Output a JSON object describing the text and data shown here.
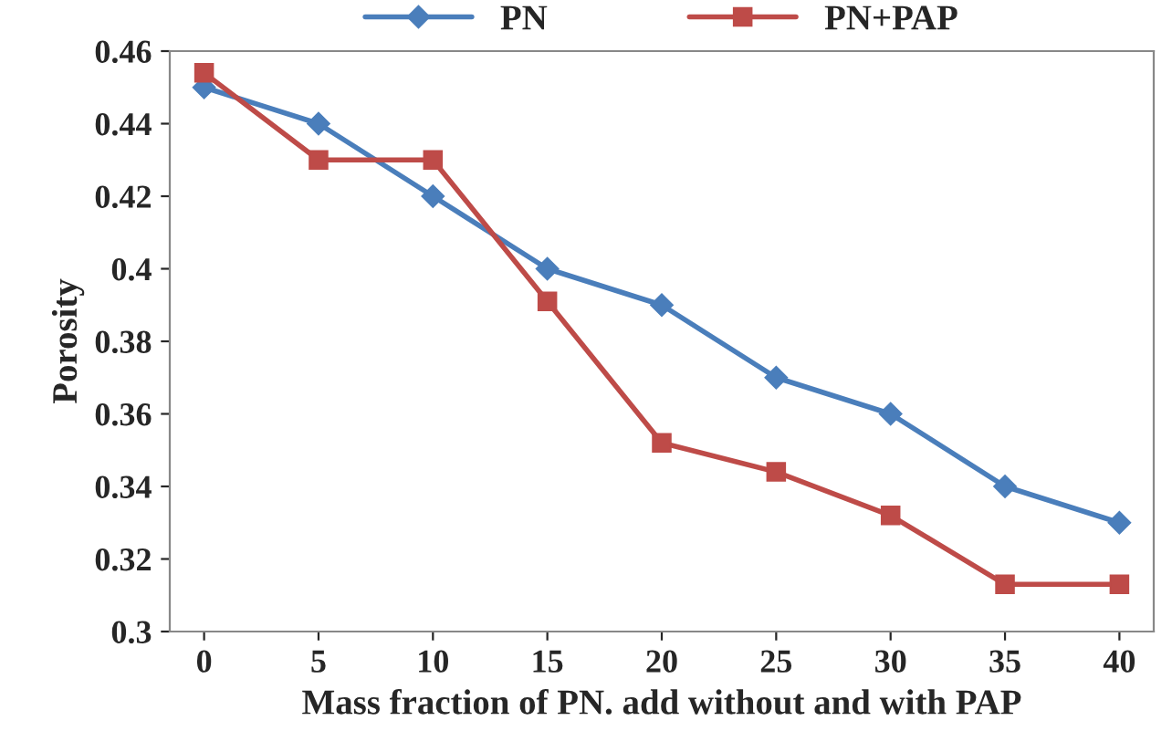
{
  "chart_data": {
    "type": "line",
    "xlabel": "Mass fraction of PN. add without and with PAP",
    "ylabel": "Porosity",
    "categories": [
      "0",
      "5",
      "10",
      "15",
      "20",
      "25",
      "30",
      "35",
      "40"
    ],
    "series": [
      {
        "name": "PN",
        "color": "#4a7ebb",
        "marker": "diamond",
        "values": [
          0.45,
          0.44,
          0.42,
          0.4,
          0.39,
          0.37,
          0.36,
          0.34,
          0.33
        ]
      },
      {
        "name": "PN+PAP",
        "color": "#be4b48",
        "marker": "square",
        "values": [
          0.454,
          0.43,
          0.43,
          0.391,
          0.352,
          0.344,
          0.332,
          0.313,
          0.313
        ]
      }
    ],
    "ylim": [
      0.3,
      0.46
    ],
    "yticks": [
      {
        "value": 0.3,
        "label": "0.3"
      },
      0.32,
      0.34,
      0.36,
      0.38,
      {
        "value": 0.4,
        "label": "0.4"
      },
      0.42,
      0.44,
      0.46
    ],
    "grid": false,
    "legend": "top",
    "line_style": "solid"
  }
}
